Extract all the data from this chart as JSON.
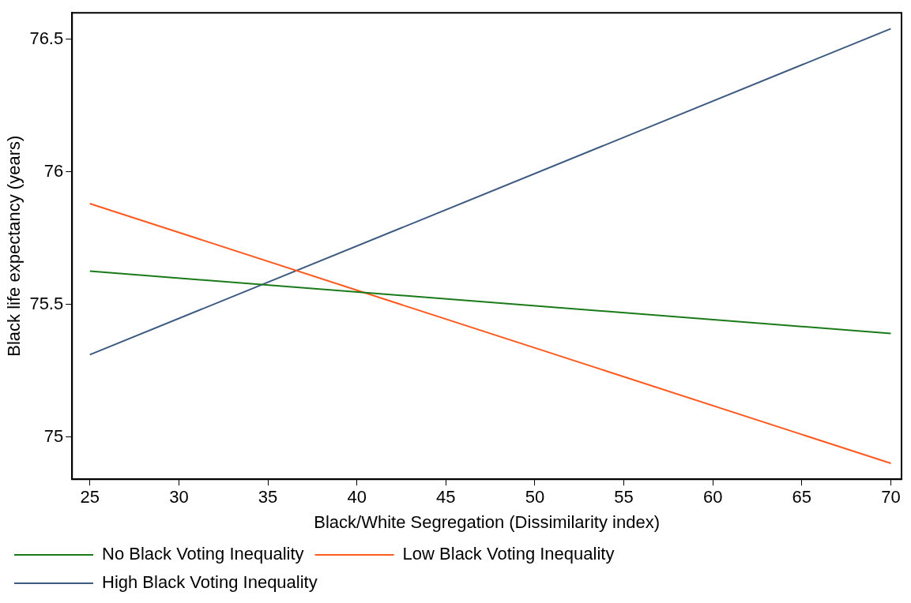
{
  "chart_data": {
    "type": "line",
    "xlabel": "Black/White Segregation (Dissimilarity index)",
    "ylabel": "Black life expectancy (years)",
    "x": [
      25,
      70
    ],
    "xlim": [
      24,
      70.6
    ],
    "xticks": [
      25,
      30,
      35,
      40,
      45,
      50,
      55,
      60,
      65,
      70
    ],
    "ylim": [
      74.84,
      76.6
    ],
    "yticks": [
      75,
      75.5,
      76,
      76.5
    ],
    "series": [
      {
        "name": "No Black Voting Inequality",
        "color": "#1a7a1a",
        "values": [
          75.625,
          75.39
        ]
      },
      {
        "name": "Low Black Voting Inequality",
        "color": "#ff5a1f",
        "values": [
          75.88,
          74.9
        ]
      },
      {
        "name": "High Black Voting Inequality",
        "color": "#3c5a80",
        "values": [
          75.31,
          76.54
        ]
      }
    ],
    "grid": false,
    "legend": "bottom",
    "marker": "none",
    "line_style": "solid"
  }
}
